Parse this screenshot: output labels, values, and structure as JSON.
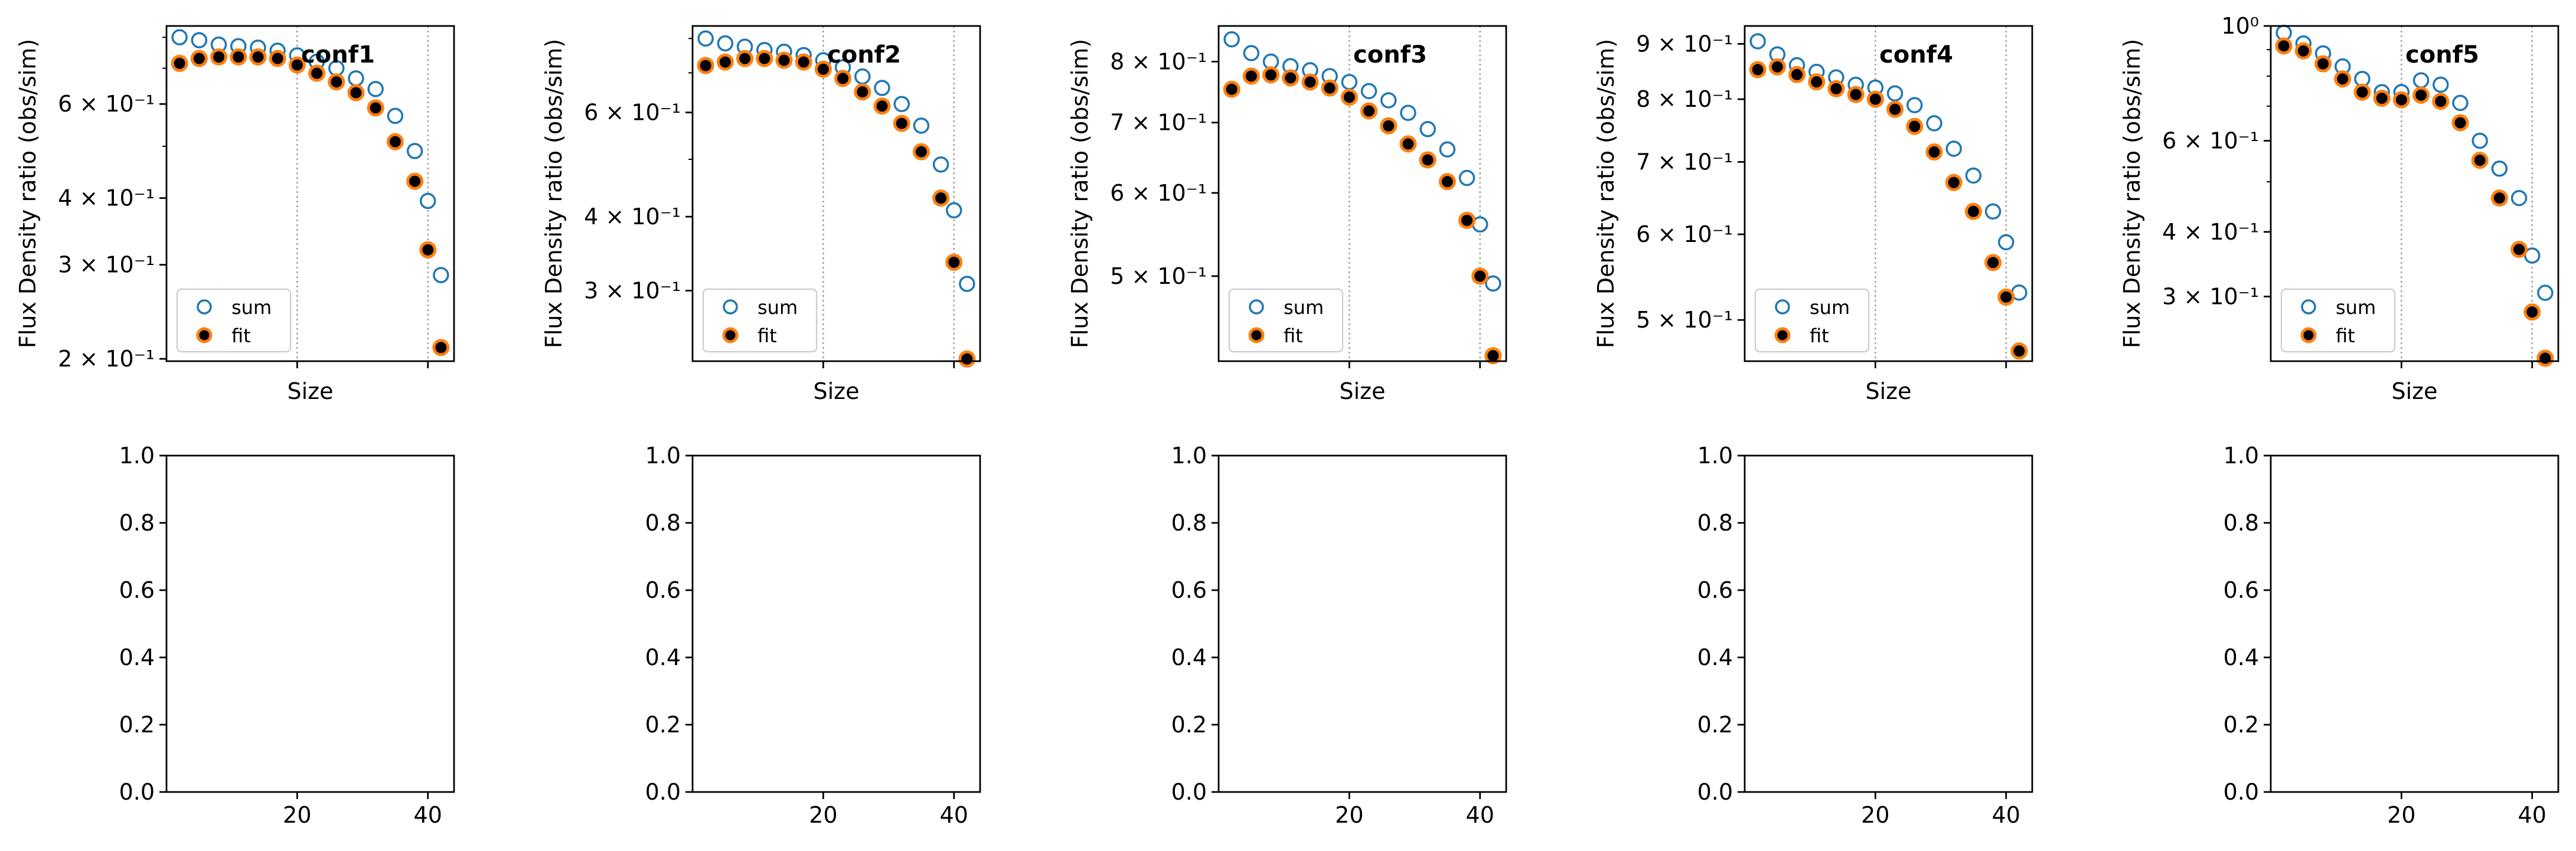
{
  "chart_data": [
    {
      "type": "scatter",
      "title": "conf1",
      "xlabel": "Size",
      "ylabel": "Flux Density ratio (obs/sim)",
      "yscale": "log",
      "xlim": [
        0,
        44
      ],
      "ylim": [
        0.198,
        0.84
      ],
      "vlines": [
        20,
        40
      ],
      "xticks": [
        20,
        40
      ],
      "yticks": [
        {
          "value": 0.2,
          "label": "2 × 10⁻¹"
        },
        {
          "value": 0.3,
          "label": "3 × 10⁻¹"
        },
        {
          "value": 0.4,
          "label": "4 × 10⁻¹"
        },
        {
          "value": 0.6,
          "label": "6 × 10⁻¹"
        }
      ],
      "legend": "lower-left",
      "x": [
        2,
        5,
        8,
        11,
        14,
        17,
        20,
        23,
        26,
        29,
        32,
        35,
        38,
        40,
        42
      ],
      "series": [
        {
          "name": "sum",
          "marker": "open-circle",
          "color": "#1f77b4",
          "values": [
            0.8,
            0.79,
            0.775,
            0.77,
            0.765,
            0.755,
            0.74,
            0.72,
            0.7,
            0.67,
            0.64,
            0.57,
            0.49,
            0.395,
            0.287
          ]
        },
        {
          "name": "fit",
          "marker": "filled-circle",
          "color": "#ff7f0e",
          "values": [
            0.715,
            0.73,
            0.735,
            0.735,
            0.735,
            0.73,
            0.71,
            0.685,
            0.66,
            0.63,
            0.59,
            0.51,
            0.43,
            0.32,
            0.21
          ]
        }
      ]
    },
    {
      "type": "scatter",
      "title": "conf2",
      "xlabel": "Size",
      "ylabel": "Flux Density ratio (obs/sim)",
      "yscale": "log",
      "xlim": [
        0,
        44
      ],
      "ylim": [
        0.228,
        0.84
      ],
      "vlines": [
        20,
        40
      ],
      "xticks": [
        20,
        40
      ],
      "yticks": [
        {
          "value": 0.3,
          "label": "3 × 10⁻¹"
        },
        {
          "value": 0.4,
          "label": "4 × 10⁻¹"
        },
        {
          "value": 0.6,
          "label": "6 × 10⁻¹"
        }
      ],
      "legend": "lower-left",
      "x": [
        2,
        5,
        8,
        11,
        14,
        17,
        20,
        23,
        26,
        29,
        32,
        35,
        38,
        40,
        42
      ],
      "series": [
        {
          "name": "sum",
          "marker": "open-circle",
          "color": "#1f77b4",
          "values": [
            0.8,
            0.785,
            0.775,
            0.765,
            0.76,
            0.75,
            0.735,
            0.715,
            0.69,
            0.66,
            0.62,
            0.57,
            0.49,
            0.41,
            0.308
          ]
        },
        {
          "name": "fit",
          "marker": "filled-circle",
          "color": "#ff7f0e",
          "values": [
            0.72,
            0.73,
            0.74,
            0.74,
            0.735,
            0.73,
            0.71,
            0.685,
            0.65,
            0.615,
            0.575,
            0.515,
            0.43,
            0.335,
            0.23
          ]
        }
      ]
    },
    {
      "type": "scatter",
      "title": "conf3",
      "xlabel": "Size",
      "ylabel": "Flux Density ratio (obs/sim)",
      "yscale": "log",
      "xlim": [
        0,
        44
      ],
      "ylim": [
        0.415,
        0.865
      ],
      "vlines": [
        20,
        40
      ],
      "xticks": [
        20,
        40
      ],
      "yticks": [
        {
          "value": 0.5,
          "label": "5 × 10⁻¹"
        },
        {
          "value": 0.6,
          "label": "6 × 10⁻¹"
        },
        {
          "value": 0.7,
          "label": "7 × 10⁻¹"
        },
        {
          "value": 0.8,
          "label": "8 × 10⁻¹"
        }
      ],
      "legend": "lower-left",
      "x": [
        2,
        5,
        8,
        11,
        14,
        17,
        20,
        23,
        26,
        29,
        32,
        35,
        38,
        40,
        42
      ],
      "series": [
        {
          "name": "sum",
          "marker": "open-circle",
          "color": "#1f77b4",
          "values": [
            0.84,
            0.815,
            0.8,
            0.792,
            0.785,
            0.775,
            0.765,
            0.75,
            0.735,
            0.715,
            0.69,
            0.66,
            0.62,
            0.56,
            0.492
          ]
        },
        {
          "name": "fit",
          "marker": "filled-circle",
          "color": "#ff7f0e",
          "values": [
            0.753,
            0.775,
            0.777,
            0.772,
            0.765,
            0.755,
            0.74,
            0.718,
            0.695,
            0.668,
            0.645,
            0.615,
            0.565,
            0.5,
            0.42
          ]
        }
      ]
    },
    {
      "type": "scatter",
      "title": "conf4",
      "xlabel": "Size",
      "ylabel": "Flux Density ratio (obs/sim)",
      "yscale": "log",
      "xlim": [
        0,
        44
      ],
      "ylim": [
        0.458,
        0.935
      ],
      "vlines": [
        20,
        40
      ],
      "xticks": [
        20,
        40
      ],
      "yticks": [
        {
          "value": 0.5,
          "label": "5 × 10⁻¹"
        },
        {
          "value": 0.6,
          "label": "6 × 10⁻¹"
        },
        {
          "value": 0.7,
          "label": "7 × 10⁻¹"
        },
        {
          "value": 0.8,
          "label": "8 × 10⁻¹"
        },
        {
          "value": 0.9,
          "label": "9 × 10⁻¹"
        }
      ],
      "legend": "lower-left",
      "x": [
        2,
        5,
        8,
        11,
        14,
        17,
        20,
        23,
        26,
        29,
        32,
        35,
        38,
        40,
        42
      ],
      "series": [
        {
          "name": "sum",
          "marker": "open-circle",
          "color": "#1f77b4",
          "values": [
            0.905,
            0.88,
            0.86,
            0.848,
            0.838,
            0.825,
            0.82,
            0.81,
            0.79,
            0.76,
            0.72,
            0.68,
            0.63,
            0.59,
            0.53
          ]
        },
        {
          "name": "fit",
          "marker": "filled-circle",
          "color": "#ff7f0e",
          "values": [
            0.852,
            0.857,
            0.843,
            0.83,
            0.818,
            0.808,
            0.8,
            0.783,
            0.755,
            0.715,
            0.67,
            0.63,
            0.565,
            0.525,
            0.468
          ]
        }
      ]
    },
    {
      "type": "scatter",
      "title": "conf5",
      "xlabel": "Size",
      "ylabel": "Flux Density ratio (obs/sim)",
      "yscale": "log",
      "xlim": [
        0,
        44
      ],
      "ylim": [
        0.225,
        1.0
      ],
      "vlines": [
        20,
        40
      ],
      "xticks": [
        20,
        40
      ],
      "yticks": [
        {
          "value": 0.3,
          "label": "3 × 10⁻¹"
        },
        {
          "value": 0.4,
          "label": "4 × 10⁻¹"
        },
        {
          "value": 0.6,
          "label": "6 × 10⁻¹"
        },
        {
          "value": 1.0,
          "label": "10⁰"
        }
      ],
      "legend": "lower-left",
      "x": [
        2,
        5,
        8,
        11,
        14,
        17,
        20,
        23,
        26,
        29,
        32,
        35,
        38,
        40,
        42
      ],
      "series": [
        {
          "name": "sum",
          "marker": "open-circle",
          "color": "#1f77b4",
          "values": [
            0.97,
            0.925,
            0.885,
            0.835,
            0.79,
            0.745,
            0.745,
            0.785,
            0.77,
            0.71,
            0.6,
            0.53,
            0.465,
            0.36,
            0.305
          ]
        },
        {
          "name": "fit",
          "marker": "filled-circle",
          "color": "#ff7f0e",
          "values": [
            0.915,
            0.895,
            0.845,
            0.79,
            0.745,
            0.725,
            0.72,
            0.735,
            0.715,
            0.65,
            0.55,
            0.465,
            0.37,
            0.28,
            0.228
          ]
        }
      ]
    },
    {
      "type": "empty",
      "xlim": [
        0,
        44
      ],
      "ylim": [
        0,
        1
      ],
      "xticks": [
        20,
        40
      ],
      "yticks": [
        0.0,
        0.2,
        0.4,
        0.6,
        0.8,
        1.0
      ]
    },
    {
      "type": "empty",
      "xlim": [
        0,
        44
      ],
      "ylim": [
        0,
        1
      ],
      "xticks": [
        20,
        40
      ],
      "yticks": [
        0.0,
        0.2,
        0.4,
        0.6,
        0.8,
        1.0
      ]
    },
    {
      "type": "empty",
      "xlim": [
        0,
        44
      ],
      "ylim": [
        0,
        1
      ],
      "xticks": [
        20,
        40
      ],
      "yticks": [
        0.0,
        0.2,
        0.4,
        0.6,
        0.8,
        1.0
      ]
    },
    {
      "type": "empty",
      "xlim": [
        0,
        44
      ],
      "ylim": [
        0,
        1
      ],
      "xticks": [
        20,
        40
      ],
      "yticks": [
        0.0,
        0.2,
        0.4,
        0.6,
        0.8,
        1.0
      ]
    },
    {
      "type": "empty",
      "xlim": [
        0,
        44
      ],
      "ylim": [
        0,
        1
      ],
      "xticks": [
        20,
        40
      ],
      "yticks": [
        0.0,
        0.2,
        0.4,
        0.6,
        0.8,
        1.0
      ]
    }
  ]
}
